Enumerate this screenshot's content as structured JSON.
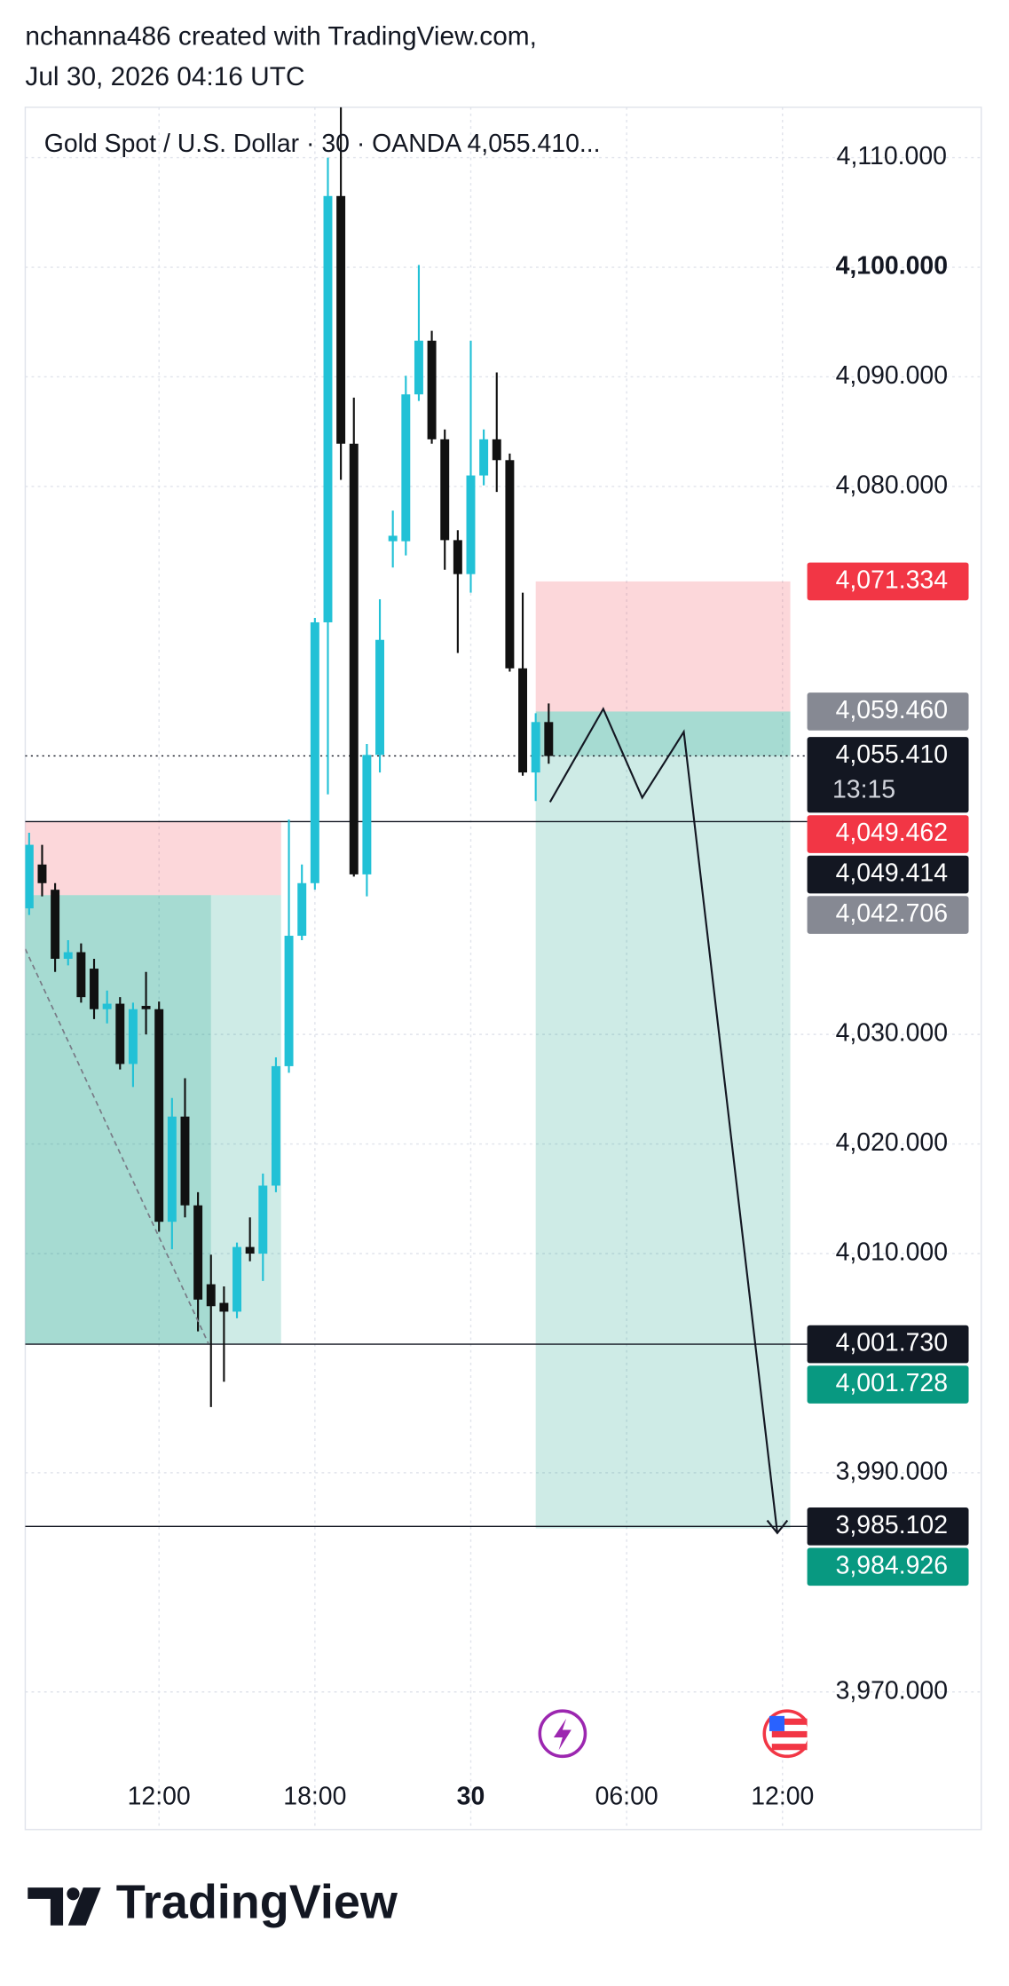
{
  "header": {
    "line1": "nchanna486 created with TradingView.com,",
    "line2": "Jul 30, 2026 04:16 UTC"
  },
  "footer": {
    "logo": "TradingView"
  },
  "chart_data": {
    "type": "candlestick",
    "title": "Gold Spot / U.S. Dollar · 30 · OANDA  4,055.410...",
    "xlim": [
      6.85,
      36.95
    ],
    "ylim": [
      3963.2,
      4114.6
    ],
    "xticks": [
      {
        "value": 12,
        "label": "12:00"
      },
      {
        "value": 18,
        "label": "18:00"
      },
      {
        "value": 24,
        "label": "30"
      },
      {
        "value": 30,
        "label": "06:00"
      },
      {
        "value": 36,
        "label": "12:00"
      }
    ],
    "yticks": [
      {
        "value": 4110,
        "label": "4,110.000"
      },
      {
        "value": 4100,
        "label": "4,100.000"
      },
      {
        "value": 4090,
        "label": "4,090.000"
      },
      {
        "value": 4080,
        "label": "4,080.000"
      },
      {
        "value": 4030,
        "label": "4,030.000"
      },
      {
        "value": 4020,
        "label": "4,020.000"
      },
      {
        "value": 4010,
        "label": "4,010.000"
      },
      {
        "value": 3990,
        "label": "3,990.000"
      },
      {
        "value": 3970,
        "label": "3,970.000"
      }
    ],
    "grid": true,
    "up_color": "#22c1d6",
    "down_color": "#111111",
    "x": [
      7,
      7.5,
      8,
      8.5,
      9,
      9.5,
      10,
      10.5,
      11,
      11.5,
      12,
      12.5,
      13,
      13.5,
      14,
      14.5,
      15,
      15.5,
      16,
      16.5,
      17,
      17.5,
      18,
      18.5,
      19,
      19.5,
      20,
      20.5,
      21,
      21.5,
      22,
      22.5,
      23,
      23.5,
      24,
      24.5,
      25,
      25.5,
      26,
      26.5,
      27
    ],
    "open": [
      4041.5,
      4045.5,
      4043.2,
      4036.9,
      4037.5,
      4036,
      4032.3,
      4032.8,
      4027.3,
      4032.6,
      4032.3,
      4012.9,
      4022.5,
      4014.4,
      4007.2,
      4005.5,
      4004.7,
      4010.6,
      4010,
      4016.2,
      4027.1,
      4039,
      4043.8,
      4067.6,
      4106.5,
      4083.9,
      4044.6,
      4055.5,
      4075,
      4075,
      4088.4,
      4093.3,
      4084.3,
      4075.1,
      4072,
      4081,
      4084.3,
      4082.4,
      4063.4,
      4053.9,
      4058.5
    ],
    "high": [
      4048.4,
      4047.3,
      4043.8,
      4038.6,
      4038.3,
      4036.9,
      4034,
      4033.4,
      4032.9,
      4035.7,
      4033,
      4024.2,
      4026,
      4015.6,
      4009.9,
      4007,
      4011,
      4013.3,
      4017.3,
      4027.9,
      4049.6,
      4045.5,
      4068,
      4110,
      4114.6,
      4088.1,
      4056.5,
      4069.7,
      4077.8,
      4090.1,
      4100.2,
      4094.2,
      4085.2,
      4076,
      4093.3,
      4085.2,
      4090.4,
      4083,
      4070.3,
      4059.3,
      4060.2
    ],
    "low": [
      4040.9,
      4042.6,
      4035.7,
      4036.3,
      4032.9,
      4031.4,
      4031,
      4026.8,
      4025.2,
      4030,
      4012,
      4010.4,
      4013.3,
      4002.9,
      3996,
      3998.3,
      4004.1,
      4009.3,
      4007.5,
      4015.6,
      4026.5,
      4038.6,
      4043.2,
      4051.9,
      4080.6,
      4044.4,
      4042.6,
      4053.9,
      4072.6,
      4073.7,
      4087.8,
      4083.9,
      4072.4,
      4064.8,
      4070.3,
      4080.1,
      4079.5,
      4063.1,
      4053.6,
      4051.3,
      4054.7
    ],
    "close": [
      4047.3,
      4043.8,
      4036.9,
      4037.5,
      4033.4,
      4032.3,
      4032.8,
      4027.3,
      4032.3,
      4032.3,
      4012.9,
      4022.5,
      4014.4,
      4005.8,
      4005.2,
      4004.7,
      4010.6,
      4010,
      4016.2,
      4027.1,
      4039,
      4043.8,
      4067.6,
      4106.5,
      4083.9,
      4044.6,
      4055.5,
      4066,
      4075.5,
      4088.4,
      4093.3,
      4084.3,
      4075.1,
      4072,
      4081,
      4084.3,
      4082.4,
      4063.4,
      4053.9,
      4058.5,
      4055.4
    ],
    "positions": [
      {
        "start": 6.85,
        "end": 16.7,
        "stop": 4049.462,
        "entry": 4042.706,
        "target": 4001.728,
        "realized": [
          14.0,
          4001.728
        ]
      },
      {
        "start": 26.5,
        "end": 36.3,
        "stop": 4071.334,
        "entry": 4059.46,
        "target": 3984.926,
        "realized": [
          36.3,
          4055.41
        ]
      }
    ],
    "levels": [
      4049.414,
      4001.73,
      3985.102
    ],
    "current_price": 4055.41,
    "dashed_line": {
      "x": [
        6.85,
        13.9
      ],
      "y": [
        4037.8,
        4001.8
      ]
    },
    "projection": {
      "x": [
        27.05,
        29.1,
        30.6,
        32.2,
        35.8
      ],
      "y": [
        4051.2,
        4059.7,
        4051.6,
        4057.6,
        3984.5
      ]
    },
    "price_labels": [
      {
        "value": 4071.334,
        "label": "4,071.334",
        "color": "#f23645"
      },
      {
        "value": 4059.46,
        "label": "4,059.460",
        "color": "#868993"
      },
      {
        "value": 4055.41,
        "label": "4,055.410",
        "color": "#131722",
        "sublabel": "13:15"
      },
      {
        "value": 4049.462,
        "label": "4,049.462",
        "color": "#f23645"
      },
      {
        "value": 4049.414,
        "label": "4,049.414",
        "color": "#131722"
      },
      {
        "value": 4042.706,
        "label": "4,042.706",
        "color": "#868993"
      },
      {
        "value": 4001.73,
        "label": "4,001.730",
        "color": "#131722"
      },
      {
        "value": 4001.728,
        "label": "4,001.728",
        "color": "#089981"
      },
      {
        "value": 3985.102,
        "label": "3,985.102",
        "color": "#131722"
      },
      {
        "value": 3984.926,
        "label": "3,984.926",
        "color": "#089981"
      }
    ]
  }
}
